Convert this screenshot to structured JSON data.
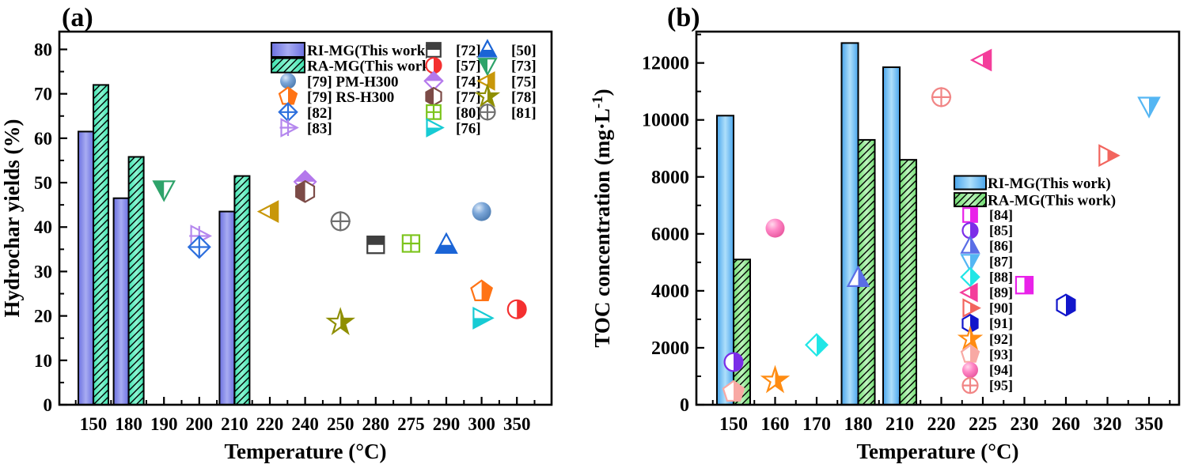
{
  "figure": {
    "panel_a_label": "(a)",
    "panel_b_label": "(b)"
  },
  "chart_data": [
    {
      "type": "bar",
      "panel": "a",
      "xlabel": "Temperature (°C)",
      "ylabel_parts": [
        {
          "t": "Hydrochar yields (%)"
        }
      ],
      "categories": [
        "150",
        "180",
        "190",
        "200",
        "210",
        "220",
        "240",
        "250",
        "280",
        "275",
        "290",
        "300",
        "350"
      ],
      "ylim": [
        0,
        84
      ],
      "yticks": [
        0,
        10,
        20,
        30,
        40,
        50,
        60,
        70,
        80
      ],
      "ytick_labels": [
        "0",
        "10",
        "20",
        "30",
        "40",
        "50",
        "60",
        "70",
        "80"
      ],
      "yminor_step": 5,
      "grid": false,
      "styles": {
        "ri": {
          "c1": "#6B70E0",
          "c2": "#A8ACF2",
          "hatch": false
        },
        "ra": {
          "c1": "#3FE3B0",
          "c2": "#8CF5D2",
          "hatch": true
        }
      },
      "bar_series": [
        {
          "name": "RI-MG(This work)",
          "style": "ri",
          "values": {
            "150": 61.5,
            "180": 46.5,
            "210": 43.5
          }
        },
        {
          "name": "RA-MG(This work)",
          "style": "ra",
          "values": {
            "150": 72.0,
            "180": 55.8,
            "210": 51.5
          }
        }
      ],
      "markers": {
        "[72]": {
          "shape": "square",
          "half": "top",
          "color": "#3F3F3F"
        },
        "[50]": {
          "shape": "triangle-up",
          "half": "bottom",
          "color": "#1A64D6"
        },
        "[57]": {
          "shape": "circle",
          "half": "right",
          "color": "#F43030"
        },
        "[73]": {
          "shape": "triangle-down",
          "half": "left",
          "color": "#2EA36A"
        },
        "[74]": {
          "shape": "diamond",
          "half": "top",
          "color": "#B478EC"
        },
        "[75]": {
          "shape": "triangle-left",
          "half": "right",
          "color": "#C8970A"
        },
        "[77]": {
          "shape": "hexagon",
          "half": "left",
          "color": "#7C4B47"
        },
        "[78]": {
          "shape": "star",
          "half": "right",
          "color": "#8F8F00"
        },
        "[80]": {
          "shape": "square",
          "half": "none",
          "cross": true,
          "color": "#7CC41C"
        },
        "[81]": {
          "shape": "circle",
          "half": "none",
          "cross": true,
          "color": "#6F6F6F"
        },
        "[76]": {
          "shape": "triangle-right",
          "half": "bottom",
          "color": "#17CBD4"
        },
        "[79] PM-H300": {
          "shape": "circle",
          "sphere": true,
          "color": "#7BA6D8",
          "hi": "#DCE9F7",
          "lo": "#4C7BB0"
        },
        "[79] RS-H300": {
          "shape": "pentagon",
          "half": "right",
          "color": "#FF7315"
        },
        "[82]": {
          "shape": "diamond",
          "half": "none",
          "cross": true,
          "color": "#2D6FDD"
        },
        "[83]": {
          "shape": "triangle-right",
          "half": "none",
          "cross": true,
          "color": "#B588EE"
        }
      },
      "points": [
        {
          "ref": "[73]",
          "x": "190",
          "y": 48.5
        },
        {
          "ref": "[83]",
          "x": "200",
          "y": 38.0
        },
        {
          "ref": "[82]",
          "x": "200",
          "y": 35.5
        },
        {
          "ref": "[75]",
          "x": "220",
          "y": 43.5
        },
        {
          "ref": "[74]",
          "x": "240",
          "y": 50.2
        },
        {
          "ref": "[77]",
          "x": "240",
          "y": 48.0
        },
        {
          "ref": "[81]",
          "x": "250",
          "y": 41.3
        },
        {
          "ref": "[78]",
          "x": "250",
          "y": 18.5
        },
        {
          "ref": "[72]",
          "x": "280",
          "y": 36.0
        },
        {
          "ref": "[80]",
          "x": "275",
          "y": 36.3
        },
        {
          "ref": "[50]",
          "x": "290",
          "y": 36.0
        },
        {
          "ref": "[79] PM-H300",
          "x": "300",
          "y": 43.5
        },
        {
          "ref": "[79] RS-H300",
          "x": "300",
          "y": 25.5
        },
        {
          "ref": "[76]",
          "x": "300",
          "y": 19.5
        },
        {
          "ref": "[57]",
          "x": "350",
          "y": 21.5
        }
      ],
      "legend": {
        "left_column": [
          {
            "swatch": "ri",
            "label": "RI-MG(This work)"
          },
          {
            "swatch": "ra",
            "label": "RA-MG(This work)"
          },
          {
            "ref": "[79] PM-H300",
            "label": "[79] PM-H300"
          },
          {
            "ref": "[79] RS-H300",
            "label": "[79] RS-H300"
          },
          {
            "ref": "[82]",
            "label": "[82]"
          },
          {
            "ref": "[83]",
            "label": "[83]"
          }
        ],
        "pair_rows": [
          [
            {
              "ref": "[72]",
              "label": "[72]"
            },
            {
              "ref": "[50]",
              "label": "[50]"
            }
          ],
          [
            {
              "ref": "[57]",
              "label": "[57]"
            },
            {
              "ref": "[73]",
              "label": "[73]"
            }
          ],
          [
            {
              "ref": "[74]",
              "label": "[74]"
            },
            {
              "ref": "[75]",
              "label": "[75]"
            }
          ],
          [
            {
              "ref": "[77]",
              "label": "[77]"
            },
            {
              "ref": "[78]",
              "label": "[78]"
            }
          ],
          [
            {
              "ref": "[80]",
              "label": "[80]"
            },
            {
              "ref": "[81]",
              "label": "[81]"
            }
          ],
          [
            {
              "ref": "[76]",
              "label": "[76]"
            }
          ]
        ]
      }
    },
    {
      "type": "bar",
      "panel": "b",
      "xlabel": "Temperature (°C)",
      "ylabel_parts": [
        {
          "t": "TOC concentration (mg·L"
        },
        {
          "t": "-1",
          "sup": true
        },
        {
          "t": ")"
        }
      ],
      "categories": [
        "150",
        "160",
        "170",
        "180",
        "210",
        "220",
        "225",
        "230",
        "260",
        "320",
        "350"
      ],
      "ylim": [
        0,
        13100
      ],
      "yticks": [
        0,
        2000,
        4000,
        6000,
        8000,
        10000,
        12000
      ],
      "ytick_labels": [
        "0",
        "2000",
        "4000",
        "6000",
        "8000",
        "10000",
        "12000"
      ],
      "yminor_step": 1000,
      "grid": false,
      "styles": {
        "ri": {
          "c1": "#49A5EC",
          "c2": "#AEDFFB",
          "hatch": false
        },
        "ra": {
          "c1": "#72DD72",
          "c2": "#BDF4BD",
          "hatch": true
        }
      },
      "bar_series": [
        {
          "name": "RI-MG(This work)",
          "style": "ri",
          "values": {
            "150": 10150,
            "180": 12700,
            "210": 11850
          }
        },
        {
          "name": "RA-MG(This work)",
          "style": "ra",
          "values": {
            "150": 5100,
            "180": 9300,
            "210": 8600
          }
        }
      ],
      "markers": {
        "[84]": {
          "shape": "square",
          "half": "right",
          "color": "#E922E9"
        },
        "[85]": {
          "shape": "circle",
          "half": "right",
          "color": "#7B2DE8"
        },
        "[86]": {
          "shape": "triangle-up",
          "half": "right",
          "color": "#5A6EE6"
        },
        "[87]": {
          "shape": "triangle-down",
          "half": "right",
          "color": "#55B6F3"
        },
        "[88]": {
          "shape": "diamond",
          "half": "right",
          "color": "#20E6E6"
        },
        "[89]": {
          "shape": "triangle-left",
          "half": "right",
          "color": "#F43D9B"
        },
        "[90]": {
          "shape": "triangle-right",
          "half": "right",
          "color": "#F2655E"
        },
        "[91]": {
          "shape": "hexagon",
          "half": "right",
          "color": "#1216CB"
        },
        "[92]": {
          "shape": "star",
          "half": "right",
          "color": "#FF8C12"
        },
        "[93]": {
          "shape": "pentagon",
          "half": "right",
          "color": "#F8A9A4"
        },
        "[94]": {
          "shape": "circle",
          "sphere": true,
          "color": "#FF87C6",
          "hi": "#FFD9EC",
          "lo": "#E8569E"
        },
        "[95]": {
          "shape": "circle",
          "half": "none",
          "cross": true,
          "color": "#F18585"
        }
      },
      "points": [
        {
          "ref": "[93]",
          "x": "150",
          "y": 450
        },
        {
          "ref": "[85]",
          "x": "150",
          "y": 1500
        },
        {
          "ref": "[94]",
          "x": "160",
          "y": 6200
        },
        {
          "ref": "[92]",
          "x": "160",
          "y": 850
        },
        {
          "ref": "[88]",
          "x": "170",
          "y": 2100
        },
        {
          "ref": "[86]",
          "x": "180",
          "y": 4450
        },
        {
          "ref": "[95]",
          "x": "220",
          "y": 10800
        },
        {
          "ref": "[89]",
          "x": "225",
          "y": 12100
        },
        {
          "ref": "[84]",
          "x": "230",
          "y": 4200
        },
        {
          "ref": "[91]",
          "x": "260",
          "y": 3500
        },
        {
          "ref": "[90]",
          "x": "320",
          "y": 8750
        },
        {
          "ref": "[87]",
          "x": "350",
          "y": 10500
        }
      ],
      "legend": {
        "column": [
          {
            "swatch": "ri",
            "label": "RI-MG(This work)"
          },
          {
            "swatch": "ra",
            "label": "RA-MG(This work)"
          },
          {
            "ref": "[84]",
            "label": "[84]"
          },
          {
            "ref": "[85]",
            "label": "[85]"
          },
          {
            "ref": "[86]",
            "label": "[86]"
          },
          {
            "ref": "[87]",
            "label": "[87]"
          },
          {
            "ref": "[88]",
            "label": "[88]"
          },
          {
            "ref": "[89]",
            "label": "[89]"
          },
          {
            "ref": "[90]",
            "label": "[90]"
          },
          {
            "ref": "[91]",
            "label": "[91]"
          },
          {
            "ref": "[92]",
            "label": "[92]"
          },
          {
            "ref": "[93]",
            "label": "[93]"
          },
          {
            "ref": "[94]",
            "label": "[94]"
          },
          {
            "ref": "[95]",
            "label": "[95]"
          }
        ]
      }
    }
  ]
}
